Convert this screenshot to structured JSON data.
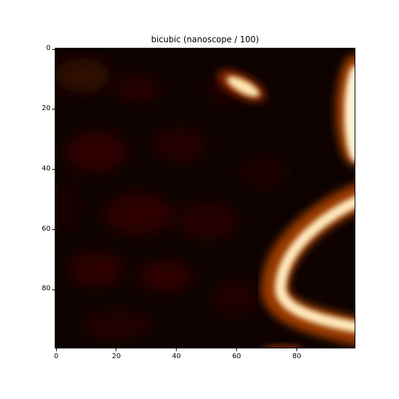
{
  "title": "bicubic (nanoscope / 100)",
  "colormap": "afmhot",
  "colors": {
    "background": "#0b0200",
    "dark_red": "#3a0800",
    "orange": "#b04a00",
    "bright": "#fff0c8"
  },
  "image_extent": {
    "x": [
      -0.5,
      99.5
    ],
    "y": [
      99.5,
      -0.5
    ]
  },
  "x_ticks": [
    {
      "value": 0,
      "label": "0"
    },
    {
      "value": 20,
      "label": "20"
    },
    {
      "value": 40,
      "label": "40"
    },
    {
      "value": 60,
      "label": "60"
    },
    {
      "value": 80,
      "label": "80"
    }
  ],
  "y_ticks": [
    {
      "value": 0,
      "label": "0"
    },
    {
      "value": 20,
      "label": "20"
    },
    {
      "value": 40,
      "label": "40"
    },
    {
      "value": 60,
      "label": "60"
    },
    {
      "value": 80,
      "label": "80"
    }
  ]
}
